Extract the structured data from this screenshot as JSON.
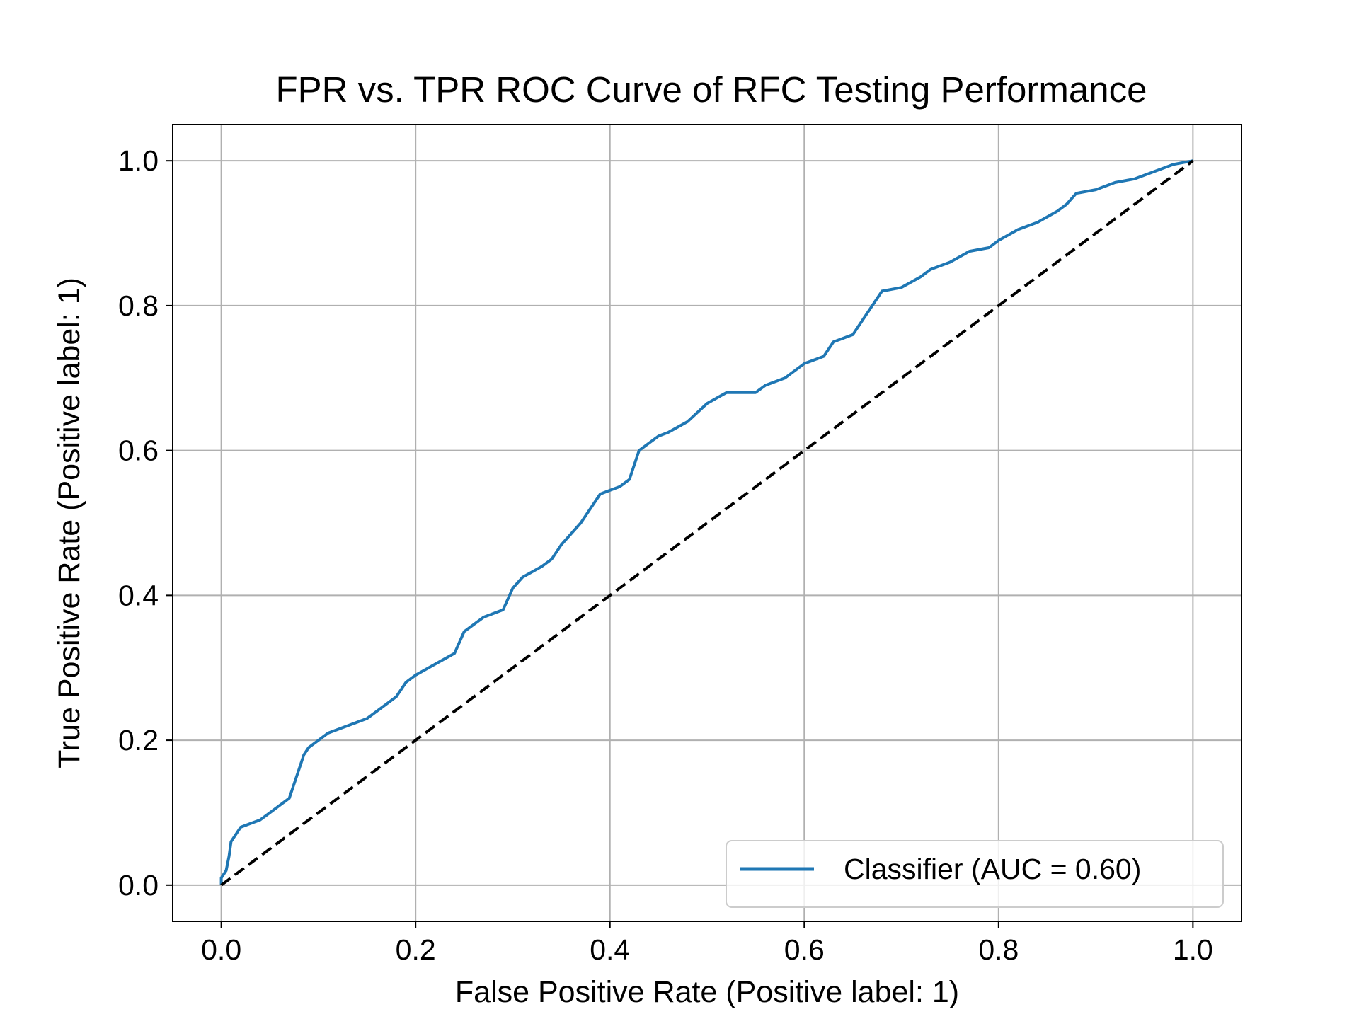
{
  "chart_data": {
    "type": "line",
    "title": "FPR vs. TPR ROC Curve of RFC Testing Performance",
    "xlabel": "False Positive Rate (Positive label: 1)",
    "ylabel": "True Positive Rate (Positive label: 1)",
    "xlim": [
      -0.05,
      1.05
    ],
    "ylim": [
      -0.05,
      1.05
    ],
    "xticks": [
      0.0,
      0.2,
      0.4,
      0.6,
      0.8,
      1.0
    ],
    "xtick_labels": [
      "0.0",
      "0.2",
      "0.4",
      "0.6",
      "0.8",
      "1.0"
    ],
    "yticks": [
      0.0,
      0.2,
      0.4,
      0.6,
      0.8,
      1.0
    ],
    "ytick_labels": [
      "0.0",
      "0.2",
      "0.4",
      "0.6",
      "0.8",
      "1.0"
    ],
    "grid": true,
    "legend_position": "lower-right",
    "series": [
      {
        "name": "Classifier (AUC = 0.60)",
        "color": "#1f77b4",
        "style": "solid",
        "x": [
          0.0,
          0.0,
          0.005,
          0.008,
          0.01,
          0.015,
          0.02,
          0.03,
          0.04,
          0.05,
          0.06,
          0.07,
          0.075,
          0.08,
          0.085,
          0.09,
          0.1,
          0.11,
          0.13,
          0.15,
          0.16,
          0.18,
          0.19,
          0.2,
          0.22,
          0.24,
          0.25,
          0.27,
          0.29,
          0.3,
          0.31,
          0.33,
          0.34,
          0.35,
          0.37,
          0.38,
          0.39,
          0.4,
          0.41,
          0.42,
          0.43,
          0.45,
          0.46,
          0.48,
          0.5,
          0.52,
          0.55,
          0.56,
          0.58,
          0.6,
          0.62,
          0.63,
          0.65,
          0.66,
          0.67,
          0.68,
          0.7,
          0.72,
          0.73,
          0.75,
          0.77,
          0.79,
          0.8,
          0.82,
          0.84,
          0.86,
          0.87,
          0.88,
          0.9,
          0.92,
          0.94,
          0.96,
          0.98,
          1.0
        ],
        "y": [
          0.0,
          0.01,
          0.02,
          0.04,
          0.06,
          0.07,
          0.08,
          0.085,
          0.09,
          0.1,
          0.11,
          0.12,
          0.14,
          0.16,
          0.18,
          0.19,
          0.2,
          0.21,
          0.22,
          0.23,
          0.24,
          0.26,
          0.28,
          0.29,
          0.305,
          0.32,
          0.35,
          0.37,
          0.38,
          0.41,
          0.425,
          0.44,
          0.45,
          0.47,
          0.5,
          0.52,
          0.54,
          0.545,
          0.55,
          0.56,
          0.6,
          0.62,
          0.625,
          0.64,
          0.665,
          0.68,
          0.68,
          0.69,
          0.7,
          0.72,
          0.73,
          0.75,
          0.76,
          0.78,
          0.8,
          0.82,
          0.825,
          0.84,
          0.85,
          0.86,
          0.875,
          0.88,
          0.89,
          0.905,
          0.915,
          0.93,
          0.94,
          0.955,
          0.96,
          0.97,
          0.975,
          0.985,
          0.995,
          1.0
        ]
      },
      {
        "name": "chance",
        "color": "#000000",
        "style": "dashed",
        "x": [
          0.0,
          1.0
        ],
        "y": [
          0.0,
          1.0
        ]
      }
    ]
  }
}
